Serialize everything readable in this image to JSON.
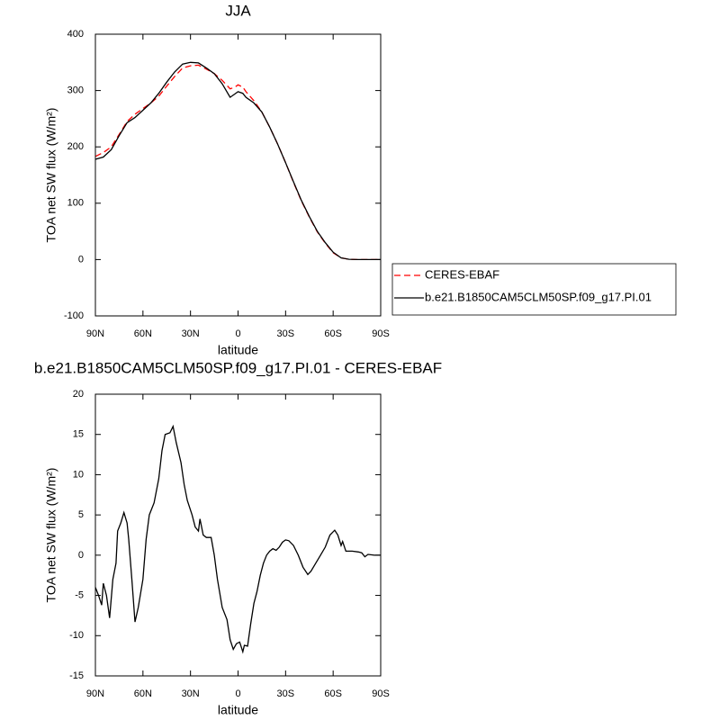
{
  "chart_data": [
    {
      "type": "line",
      "title": "JJA",
      "xlabel": "latitude",
      "ylabel": "TOA net SW flux (W/m²)",
      "xlim": [
        90,
        -90
      ],
      "ylim": [
        -100,
        400
      ],
      "xticks": [
        {
          "value": 90,
          "label": "90N"
        },
        {
          "value": 60,
          "label": "60N"
        },
        {
          "value": 30,
          "label": "30N"
        },
        0,
        {
          "value": -30,
          "label": "30S"
        },
        {
          "value": -60,
          "label": "60S"
        },
        {
          "value": -90,
          "label": "90S"
        }
      ],
      "yticks": [
        -100,
        0,
        100,
        200,
        300,
        400
      ],
      "legend": "right",
      "x": [
        90,
        85,
        80,
        75,
        70,
        65,
        60,
        55,
        50,
        45,
        40,
        35,
        30,
        25,
        20,
        15,
        10,
        5,
        2,
        0,
        -3,
        -5,
        -10,
        -15,
        -20,
        -25,
        -30,
        -35,
        -40,
        -45,
        -50,
        -55,
        -60,
        -65,
        -70,
        -75,
        -80,
        -85,
        -90
      ],
      "series": [
        {
          "name": "CERES-EBAF",
          "color": "#ff0000",
          "dashed": true,
          "values": [
            183,
            190,
            200,
            222,
            245,
            258,
            268,
            278,
            290,
            308,
            325,
            340,
            344,
            345,
            338,
            330,
            318,
            303,
            306,
            310,
            306,
            298,
            282,
            262,
            235,
            205,
            172,
            137,
            104,
            75,
            49,
            29,
            12,
            3,
            0.5,
            0,
            0,
            0,
            0
          ]
        },
        {
          "name": "b.e21.B1850CAM5CLM50SP.f09_g17.PI.01",
          "color": "#000000",
          "dashed": false,
          "values": [
            178,
            182,
            195,
            220,
            243,
            252,
            265,
            278,
            295,
            315,
            333,
            347,
            350,
            349,
            340,
            330,
            312,
            288,
            294,
            298,
            295,
            288,
            278,
            262,
            235,
            205,
            172,
            138,
            105,
            76,
            50,
            30,
            13,
            3,
            0.5,
            0,
            0,
            0,
            0
          ]
        }
      ]
    },
    {
      "type": "line",
      "title": "b.e21.B1850CAM5CLM50SP.f09_g17.PI.01 - CERES-EBAF",
      "xlabel": "latitude",
      "ylabel": "TOA net SW flux (W/m²)",
      "xlim": [
        90,
        -90
      ],
      "ylim": [
        -15,
        20
      ],
      "xticks": [
        {
          "value": 90,
          "label": "90N"
        },
        {
          "value": 60,
          "label": "60N"
        },
        {
          "value": 30,
          "label": "30N"
        },
        0,
        {
          "value": -30,
          "label": "30S"
        },
        {
          "value": -60,
          "label": "60S"
        },
        {
          "value": -90,
          "label": "90S"
        }
      ],
      "yticks": [
        -15,
        -10,
        -5,
        0,
        5,
        10,
        15,
        20
      ],
      "x": [
        90,
        88,
        86,
        85,
        83,
        81,
        79,
        77,
        76,
        74,
        72,
        70,
        69,
        67,
        65,
        63,
        60,
        58,
        56,
        53,
        50,
        48,
        46,
        43,
        41,
        39,
        36,
        34,
        32,
        29,
        27,
        25,
        24,
        22,
        20,
        17,
        15,
        13,
        10,
        7,
        5,
        3,
        1,
        -1,
        -3,
        -4,
        -6,
        -8,
        -10,
        -12,
        -14,
        -16,
        -18,
        -20,
        -22,
        -24,
        -26,
        -28,
        -30,
        -32,
        -35,
        -38,
        -41,
        -44,
        -46,
        -49,
        -52,
        -55,
        -58,
        -61,
        -63,
        -65,
        -66,
        -68,
        -72,
        -76,
        -78,
        -80,
        -82,
        -86,
        -90
      ],
      "series": [
        {
          "color": "#000000",
          "dashed": false,
          "values": [
            -4,
            -5,
            -6.2,
            -3.5,
            -5,
            -7.8,
            -3,
            -1,
            3,
            4,
            5.3,
            4,
            2,
            -3,
            -8.3,
            -6.5,
            -3,
            2,
            5,
            6.5,
            9.5,
            13,
            15,
            15.2,
            16,
            14,
            11.5,
            8.8,
            6.8,
            5,
            3.5,
            3,
            4.5,
            2.5,
            2.2,
            2.2,
            0,
            -3,
            -6.5,
            -8,
            -10.5,
            -11.7,
            -11,
            -10.8,
            -12,
            -11.2,
            -11.3,
            -8.5,
            -6,
            -4.5,
            -2.5,
            -1,
            0,
            0.5,
            0.8,
            0.6,
            1,
            1.6,
            1.9,
            1.8,
            1.2,
            0,
            -1.5,
            -2.4,
            -2,
            -1,
            0,
            1,
            2.5,
            3.1,
            2.5,
            1.2,
            1.7,
            0.5,
            0.5,
            0.4,
            0.3,
            -0.2,
            0.1,
            0,
            0
          ]
        }
      ]
    }
  ]
}
